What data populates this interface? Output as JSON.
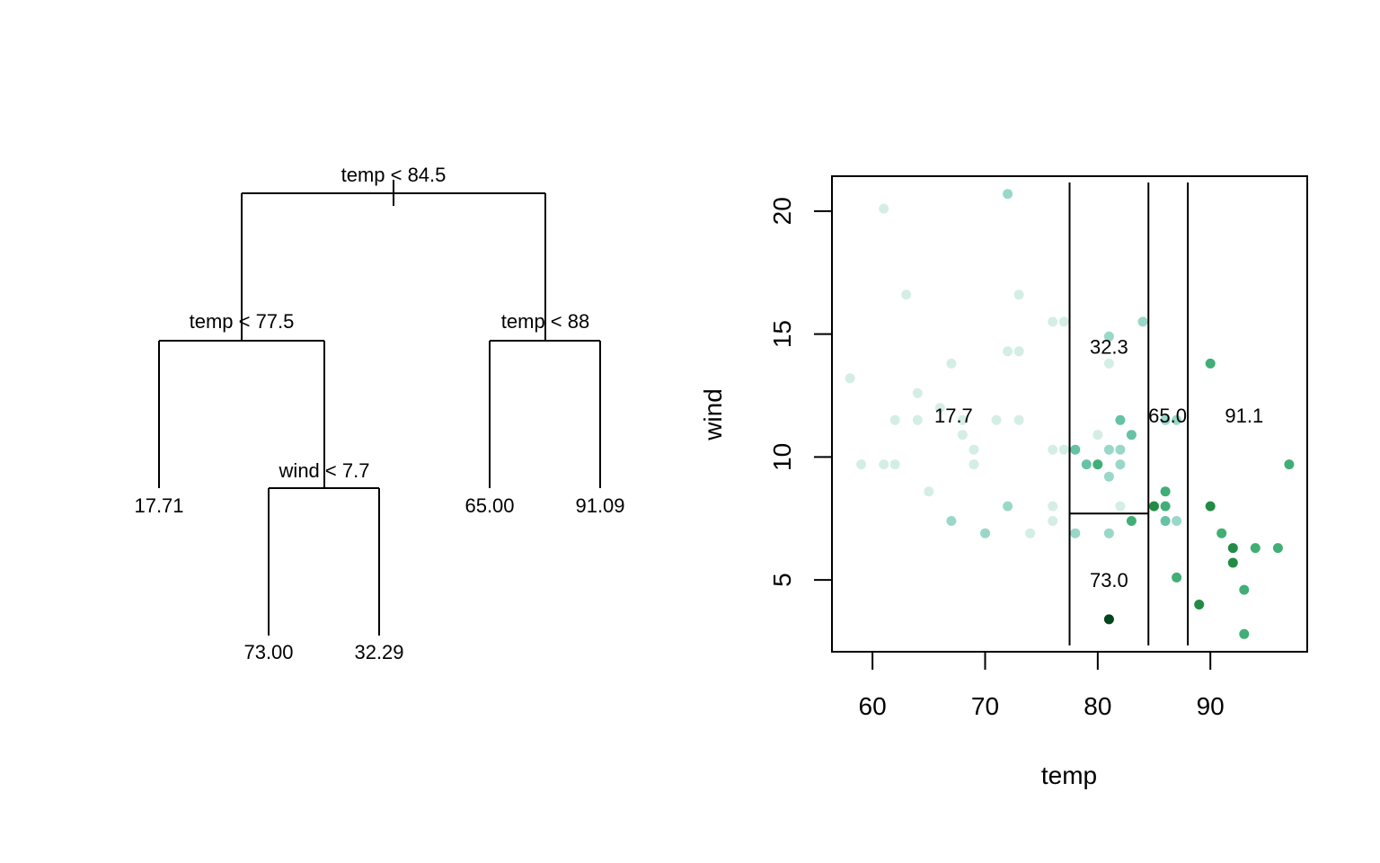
{
  "tree": {
    "type": "tree",
    "splits": [
      {
        "id": "root",
        "label": "temp < 84.5"
      },
      {
        "id": "left",
        "label": "temp < 77.5"
      },
      {
        "id": "right",
        "label": "temp < 88"
      },
      {
        "id": "leftright",
        "label": "wind < 7.7"
      }
    ],
    "leaves": [
      {
        "id": "leaf1",
        "value": "17.71"
      },
      {
        "id": "leaf2",
        "value": "73.00"
      },
      {
        "id": "leaf3",
        "value": "32.29"
      },
      {
        "id": "leaf4",
        "value": "65.00"
      },
      {
        "id": "leaf5",
        "value": "91.09"
      }
    ]
  },
  "chart_data": {
    "type": "scatter",
    "xlabel": "temp",
    "ylabel": "wind",
    "xlim": [
      56.4,
      98.6
    ],
    "ylim": [
      2.08,
      21.42
    ],
    "xticks": [
      60,
      70,
      80,
      90
    ],
    "yticks": [
      5,
      10,
      15,
      20
    ],
    "partitions": {
      "vertical": [
        77.5,
        84.5,
        88
      ],
      "horizontal": [
        {
          "y": 7.7,
          "x_from": 77.5,
          "x_to": 84.5
        }
      ]
    },
    "regions": [
      {
        "label": "17.7",
        "x": 67.2,
        "y": 11.7
      },
      {
        "label": "32.3",
        "x": 81,
        "y": 14.5
      },
      {
        "label": "73.0",
        "x": 81,
        "y": 5
      },
      {
        "label": "65.0",
        "x": 86.2,
        "y": 11.7
      },
      {
        "label": "91.1",
        "x": 93,
        "y": 11.7
      }
    ],
    "colors": [
      "#d4eee6",
      "#99d8c9",
      "#66c2a4",
      "#41ae76",
      "#238b45",
      "#00441b"
    ],
    "points": [
      {
        "x": 58,
        "y": 13.2,
        "c": 0
      },
      {
        "x": 59,
        "y": 9.7,
        "c": 0
      },
      {
        "x": 61,
        "y": 20.1,
        "c": 0
      },
      {
        "x": 61,
        "y": 9.7,
        "c": 0
      },
      {
        "x": 62,
        "y": 9.7,
        "c": 0
      },
      {
        "x": 62,
        "y": 11.5,
        "c": 0
      },
      {
        "x": 63,
        "y": 16.6,
        "c": 0
      },
      {
        "x": 64,
        "y": 12.6,
        "c": 0
      },
      {
        "x": 64,
        "y": 11.5,
        "c": 0
      },
      {
        "x": 65,
        "y": 8.6,
        "c": 0
      },
      {
        "x": 66,
        "y": 12.0,
        "c": 0
      },
      {
        "x": 67,
        "y": 13.8,
        "c": 0
      },
      {
        "x": 67,
        "y": 7.4,
        "c": 1
      },
      {
        "x": 68,
        "y": 11.5,
        "c": 0
      },
      {
        "x": 68,
        "y": 10.9,
        "c": 0
      },
      {
        "x": 69,
        "y": 10.3,
        "c": 0
      },
      {
        "x": 69,
        "y": 9.7,
        "c": 0
      },
      {
        "x": 70,
        "y": 6.9,
        "c": 1
      },
      {
        "x": 71,
        "y": 11.5,
        "c": 0
      },
      {
        "x": 72,
        "y": 20.7,
        "c": 1
      },
      {
        "x": 72,
        "y": 14.3,
        "c": 0
      },
      {
        "x": 72,
        "y": 8.0,
        "c": 1
      },
      {
        "x": 73,
        "y": 16.6,
        "c": 0
      },
      {
        "x": 73,
        "y": 14.3,
        "c": 0
      },
      {
        "x": 73,
        "y": 11.5,
        "c": 0
      },
      {
        "x": 74,
        "y": 6.9,
        "c": 0
      },
      {
        "x": 76,
        "y": 15.5,
        "c": 0
      },
      {
        "x": 76,
        "y": 10.3,
        "c": 0
      },
      {
        "x": 76,
        "y": 8.0,
        "c": 0
      },
      {
        "x": 76,
        "y": 7.4,
        "c": 0
      },
      {
        "x": 77,
        "y": 15.5,
        "c": 0
      },
      {
        "x": 77,
        "y": 10.3,
        "c": 0
      },
      {
        "x": 78,
        "y": 10.3,
        "c": 2
      },
      {
        "x": 78,
        "y": 6.9,
        "c": 1
      },
      {
        "x": 79,
        "y": 9.7,
        "c": 2
      },
      {
        "x": 80,
        "y": 10.9,
        "c": 0
      },
      {
        "x": 80,
        "y": 9.7,
        "c": 3
      },
      {
        "x": 81,
        "y": 14.9,
        "c": 1
      },
      {
        "x": 81,
        "y": 13.8,
        "c": 0
      },
      {
        "x": 81,
        "y": 10.3,
        "c": 1
      },
      {
        "x": 81,
        "y": 9.2,
        "c": 1
      },
      {
        "x": 81,
        "y": 6.9,
        "c": 1
      },
      {
        "x": 81,
        "y": 3.4,
        "c": 5
      },
      {
        "x": 82,
        "y": 11.5,
        "c": 2
      },
      {
        "x": 82,
        "y": 10.3,
        "c": 1
      },
      {
        "x": 82,
        "y": 9.7,
        "c": 1
      },
      {
        "x": 82,
        "y": 8.0,
        "c": 0
      },
      {
        "x": 83,
        "y": 10.9,
        "c": 2
      },
      {
        "x": 83,
        "y": 7.4,
        "c": 3
      },
      {
        "x": 84,
        "y": 15.5,
        "c": 1
      },
      {
        "x": 85,
        "y": 8.0,
        "c": 4
      },
      {
        "x": 86,
        "y": 11.5,
        "c": 1
      },
      {
        "x": 86,
        "y": 8.6,
        "c": 3
      },
      {
        "x": 86,
        "y": 8.0,
        "c": 3
      },
      {
        "x": 86,
        "y": 7.4,
        "c": 2
      },
      {
        "x": 87,
        "y": 11.5,
        "c": 1
      },
      {
        "x": 87,
        "y": 7.4,
        "c": 1
      },
      {
        "x": 87,
        "y": 5.1,
        "c": 3
      },
      {
        "x": 89,
        "y": 4.0,
        "c": 4
      },
      {
        "x": 90,
        "y": 13.8,
        "c": 3
      },
      {
        "x": 90,
        "y": 8.0,
        "c": 4
      },
      {
        "x": 91,
        "y": 6.9,
        "c": 3
      },
      {
        "x": 92,
        "y": 6.3,
        "c": 4
      },
      {
        "x": 92,
        "y": 5.7,
        "c": 4
      },
      {
        "x": 93,
        "y": 4.6,
        "c": 3
      },
      {
        "x": 93,
        "y": 2.8,
        "c": 3
      },
      {
        "x": 94,
        "y": 6.3,
        "c": 3
      },
      {
        "x": 96,
        "y": 6.3,
        "c": 3
      },
      {
        "x": 97,
        "y": 9.7,
        "c": 3
      }
    ]
  }
}
